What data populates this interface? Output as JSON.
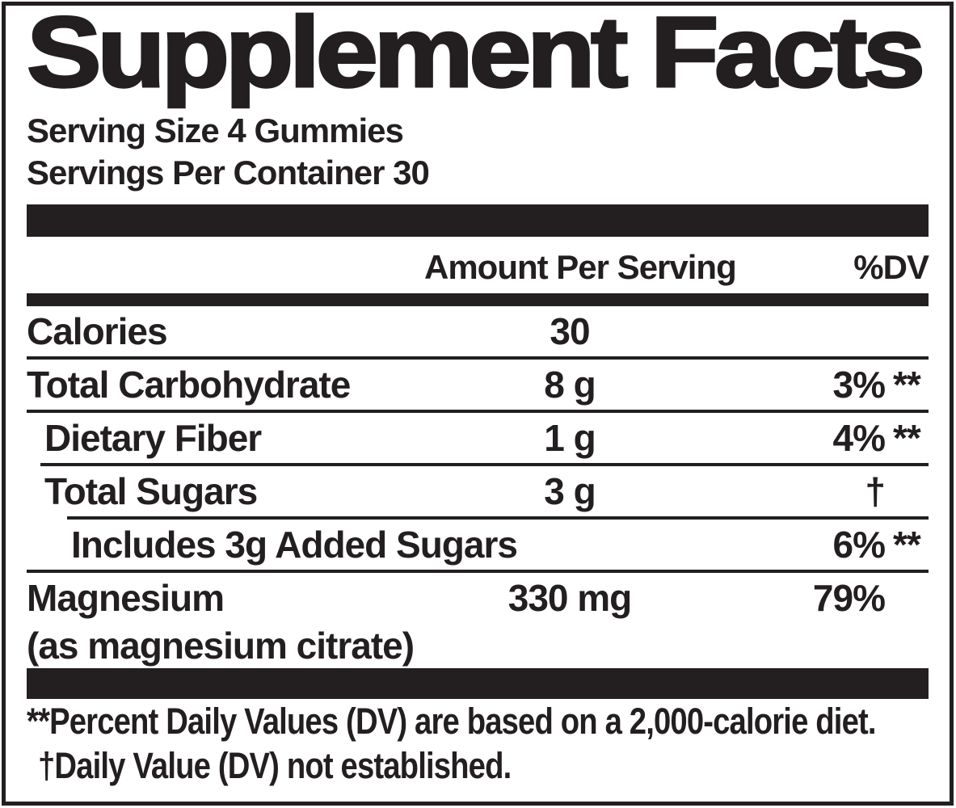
{
  "label": {
    "title": "Supplement Facts",
    "serving_size": "Serving Size 4 Gummies",
    "servings_per_container": "Servings Per Container 30",
    "columns": {
      "amount": "Amount Per Serving",
      "dv": "%DV"
    },
    "rows": [
      {
        "name": "Calories",
        "amount": "30",
        "pct": "",
        "suffix": "",
        "indent": 0
      },
      {
        "name": "Total Carbohydrate",
        "amount": "8 g",
        "pct": "3%",
        "suffix": "**",
        "indent": 0
      },
      {
        "name": "Dietary Fiber",
        "amount": "1 g",
        "pct": "4%",
        "suffix": "**",
        "indent": 1
      },
      {
        "name": "Total Sugars",
        "amount": "3 g",
        "pct": "†",
        "suffix": "",
        "indent": 1
      },
      {
        "name": "Includes 3g Added Sugars",
        "amount": "",
        "pct": "6%",
        "suffix": "**",
        "indent": 2
      },
      {
        "name": "Magnesium",
        "sub": "(as magnesium citrate)",
        "amount": "330 mg",
        "pct": "79%",
        "suffix": "",
        "indent": 0
      }
    ],
    "footnotes": [
      "**Percent Daily Values (DV) are based on a 2,000-calorie diet.",
      "†Daily Value (DV) not established."
    ],
    "colors": {
      "ink": "#231f20",
      "background": "#ffffff"
    }
  }
}
